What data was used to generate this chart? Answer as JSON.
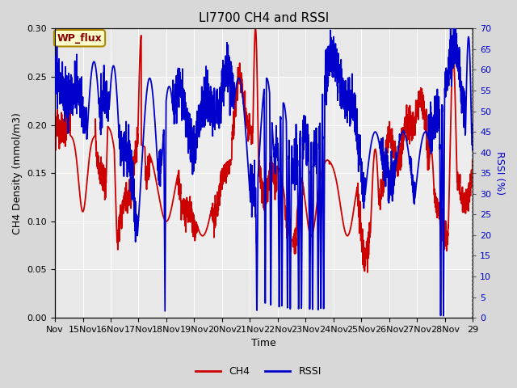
{
  "title": "LI7700 CH4 and RSSI",
  "xlabel": "Time",
  "ylabel_left": "CH4 Density (mmol/m3)",
  "ylabel_right": "RSSI (%)",
  "legend_label_ch4": "CH4",
  "legend_label_rssi": "RSSI",
  "site_label": "WP_flux",
  "xlim_start": 14,
  "xlim_end": 29,
  "ylim_left": [
    0.0,
    0.3
  ],
  "ylim_right": [
    0,
    70
  ],
  "xtick_positions": [
    14,
    15,
    16,
    17,
    18,
    19,
    20,
    21,
    22,
    23,
    24,
    25,
    26,
    27,
    28,
    29
  ],
  "xtick_labels": [
    "Nov",
    "15Nov",
    "16Nov",
    "17Nov",
    "18Nov",
    "19Nov",
    "20Nov",
    "21Nov",
    "22Nov",
    "23Nov",
    "24Nov",
    "25Nov",
    "26Nov",
    "27Nov",
    "28Nov",
    "29"
  ],
  "yticks_left": [
    0.0,
    0.05,
    0.1,
    0.15,
    0.2,
    0.25,
    0.3
  ],
  "yticks_right": [
    0,
    5,
    10,
    15,
    20,
    25,
    30,
    35,
    40,
    45,
    50,
    55,
    60,
    65,
    70
  ],
  "color_ch4": "#cc0000",
  "color_rssi": "#0000cc",
  "bg_figure": "#d8d8d8",
  "bg_plot": "#e8e8e8",
  "bg_inner_low": "#e0e0e0",
  "bg_inner_high": "#f0f0f0",
  "linewidth_ch4": 1.3,
  "linewidth_rssi": 1.3,
  "title_fontsize": 11,
  "label_fontsize": 9,
  "tick_fontsize": 8,
  "legend_fontsize": 9,
  "figsize": [
    6.4,
    4.8
  ],
  "dpi": 100
}
